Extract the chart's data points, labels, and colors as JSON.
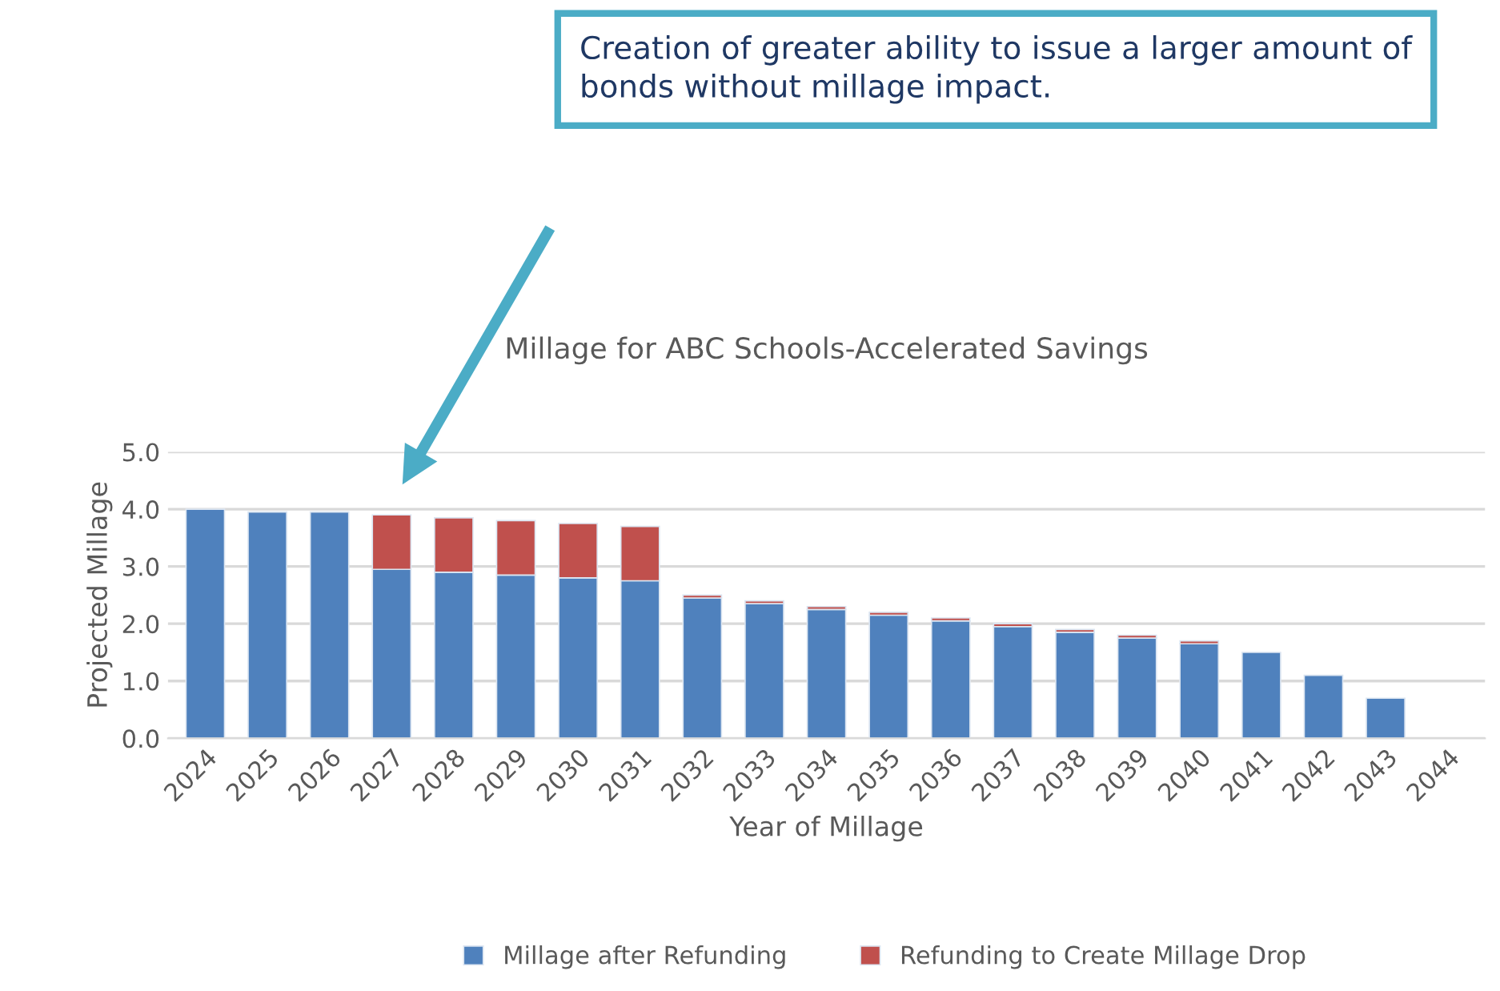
{
  "chart_data": {
    "type": "bar",
    "title": "Millage for ABC Schools-Accelerated Savings",
    "xlabel": "Year of Millage",
    "ylabel": "Projected Millage",
    "categories": [
      "2024",
      "2025",
      "2026",
      "2027",
      "2028",
      "2029",
      "2030",
      "2031",
      "2032",
      "2033",
      "2034",
      "2035",
      "2036",
      "2037",
      "2038",
      "2039",
      "2040",
      "2041",
      "2042",
      "2043",
      "2044"
    ],
    "stacked": true,
    "series": [
      {
        "name": "Millage after Refunding",
        "color": "#4f81bd",
        "values": [
          4.0,
          3.95,
          3.95,
          2.95,
          2.9,
          2.85,
          2.8,
          2.75,
          2.45,
          2.35,
          2.25,
          2.15,
          2.05,
          1.95,
          1.85,
          1.75,
          1.65,
          1.5,
          1.1,
          0.7,
          null
        ]
      },
      {
        "name": "Refunding to Create Millage Drop",
        "color": "#c0504d",
        "values": [
          null,
          null,
          null,
          0.95,
          0.95,
          0.95,
          0.95,
          0.95,
          0.05,
          0.05,
          0.05,
          0.05,
          0.05,
          0.05,
          0.05,
          0.05,
          0.05,
          null,
          null,
          null,
          null
        ]
      }
    ],
    "ylim": [
      0,
      5
    ],
    "yticks": [
      {
        "value": 0,
        "label": "0.0"
      },
      {
        "value": 1,
        "label": "1.0"
      },
      {
        "value": 2,
        "label": "2.0"
      },
      {
        "value": 3,
        "label": "3.0"
      },
      {
        "value": 4,
        "label": "4.0"
      },
      {
        "value": 5,
        "label": "5.0"
      }
    ],
    "grid": "y",
    "legend": "bottom",
    "annotations": [
      "Creation of greater ability to issue a larger amount of bonds without millage impact."
    ]
  }
}
